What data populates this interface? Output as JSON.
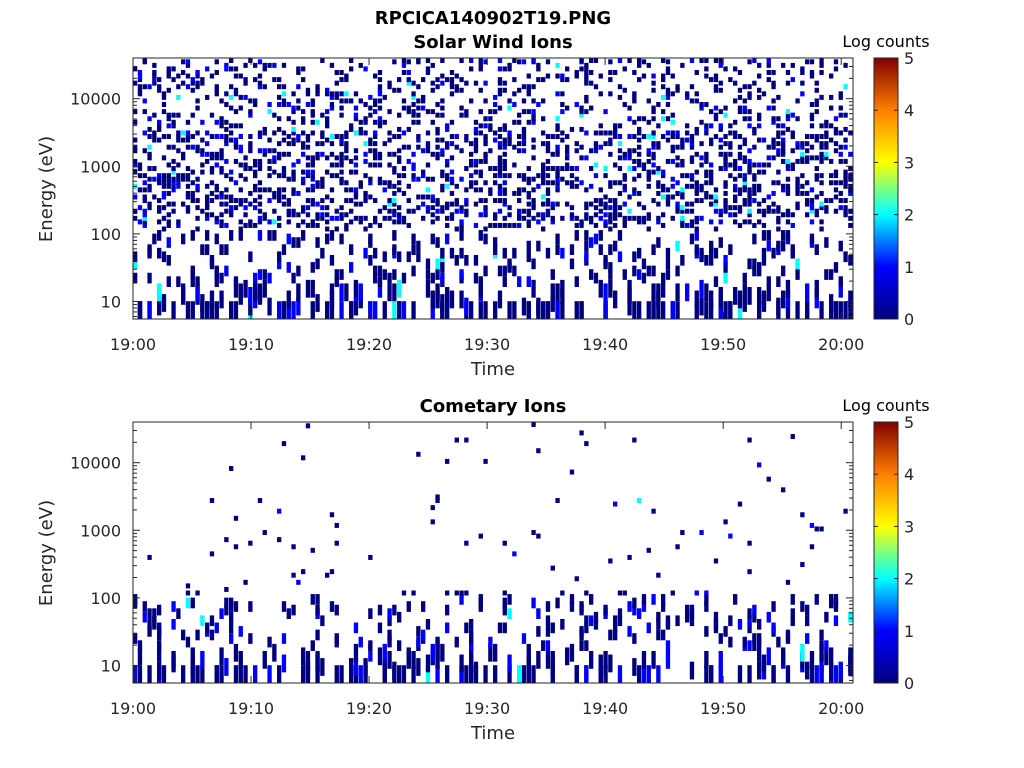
{
  "figure": {
    "title": "RPCICA140902T19.PNG"
  },
  "colormap": [
    "#00007f",
    "#0000ff",
    "#00ffff",
    "#ffff00",
    "#ff7f00",
    "#7f0000"
  ],
  "chart_data": [
    {
      "type": "heatmap",
      "title": "Solar Wind Ions",
      "xlabel": "Time",
      "ylabel": "Energy (eV)",
      "y_scale": "log",
      "ylim": [
        5.5,
        40000
      ],
      "xlim": [
        "19:00",
        "20:01"
      ],
      "x_ticks": [
        "19:00",
        "19:10",
        "19:20",
        "19:30",
        "19:40",
        "19:50",
        "20:00"
      ],
      "y_ticks": [
        "10",
        "100",
        "1000",
        "10000"
      ],
      "colorbar": {
        "label": "Log counts",
        "range": [
          0,
          5
        ],
        "ticks": [
          "0",
          "1",
          "2",
          "3",
          "4",
          "5"
        ]
      },
      "grid": false,
      "density_note": "sparse counts, mostly log counts 0-1",
      "activity_peaks_minutes": [
        16,
        28,
        32
      ]
    },
    {
      "type": "heatmap",
      "title": "Cometary Ions",
      "xlabel": "Time",
      "ylabel": "Energy (eV)",
      "y_scale": "log",
      "ylim": [
        5.5,
        40000
      ],
      "xlim": [
        "19:00",
        "20:01"
      ],
      "x_ticks": [
        "19:00",
        "19:10",
        "19:20",
        "19:30",
        "19:40",
        "19:50",
        "20:00"
      ],
      "y_ticks": [
        "10",
        "100",
        "1000",
        "10000"
      ],
      "colorbar": {
        "label": "Log counts",
        "range": [
          0,
          5
        ],
        "ticks": [
          "0",
          "1",
          "2",
          "3",
          "4",
          "5"
        ]
      },
      "grid": false,
      "density_note": "very sparse counts, mostly log count 0",
      "activity_peaks_minutes": [
        9,
        16,
        28,
        32,
        49
      ]
    }
  ]
}
